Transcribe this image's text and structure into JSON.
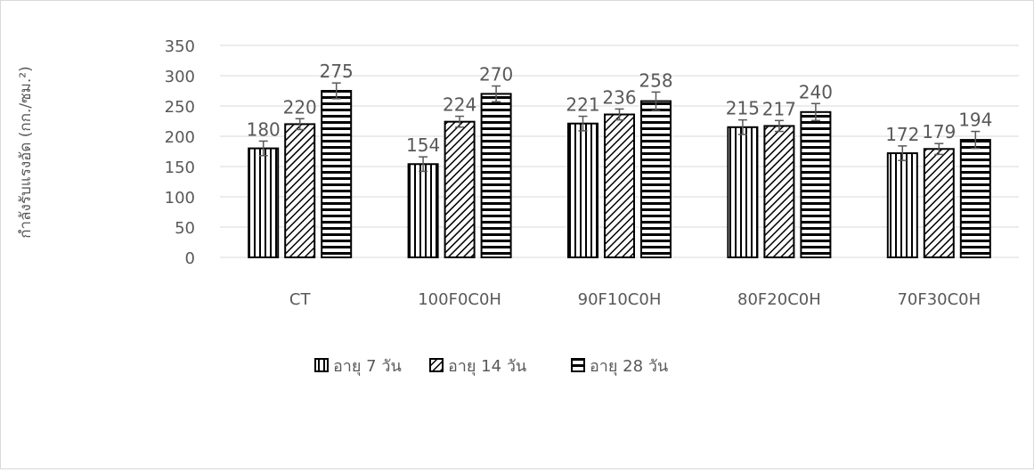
{
  "chart_data": {
    "type": "bar",
    "categories": [
      "CT",
      "100F0C0H",
      "90F10C0H",
      "80F20C0H",
      "70F30C0H"
    ],
    "series": [
      {
        "name": "อายุ 7 วัน",
        "values": [
          180,
          154,
          221,
          215,
          172
        ],
        "errors": [
          12,
          12,
          12,
          12,
          12
        ],
        "pattern": "vertical"
      },
      {
        "name": "อายุ  14 วัน",
        "values": [
          220,
          224,
          236,
          217,
          179
        ],
        "errors": [
          9,
          9,
          9,
          9,
          9
        ],
        "pattern": "diagonal"
      },
      {
        "name": "อายุ 28 วัน",
        "values": [
          275,
          270,
          258,
          240,
          194
        ],
        "errors": [
          13,
          13,
          15,
          14,
          14
        ],
        "pattern": "horizontal"
      }
    ],
    "ylabel": "กำลังรับแรงอัด (กก./ซม.²)",
    "xlabel": "",
    "ylim": [
      0,
      350
    ],
    "yticks": [
      0,
      50,
      100,
      150,
      200,
      250,
      300,
      350
    ],
    "grid": true,
    "legend_position": "bottom",
    "colors": {
      "bar_stroke": "#000000",
      "bar_fill": "#ffffff",
      "grid": "#d9d9d9",
      "text": "#595959",
      "error_bar": "#595959"
    }
  }
}
